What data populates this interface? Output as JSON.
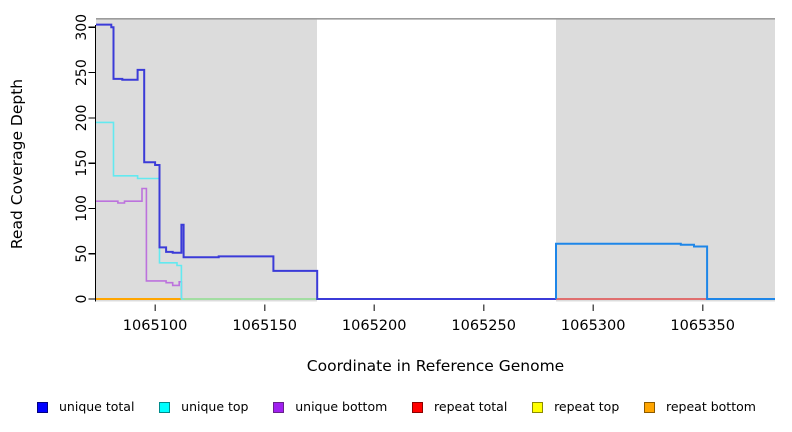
{
  "figure": {
    "x_axis_title": "Coordinate in Reference Genome",
    "y_axis_title": "Read Coverage Depth"
  },
  "legend": {
    "items": [
      {
        "label": "unique total",
        "color": "#0000FF",
        "border": "#000080"
      },
      {
        "label": "unique top",
        "color": "#00FFFF",
        "border": "#008B8B"
      },
      {
        "label": "unique bottom",
        "color": "#A020F0",
        "border": "#68228B"
      },
      {
        "label": "repeat total",
        "color": "#FF0000",
        "border": "#8B0000"
      },
      {
        "label": "repeat top",
        "color": "#FFFF00",
        "border": "#8B8B00"
      },
      {
        "label": "repeat bottom",
        "color": "#FFA500",
        "border": "#8B5A00"
      }
    ]
  },
  "chart_data": {
    "type": "line",
    "title": "",
    "xlabel": "Coordinate in Reference Genome",
    "ylabel": "Read Coverage Depth",
    "xlim": [
      1065073,
      1065383
    ],
    "ylim": [
      0,
      300
    ],
    "x_ticks": [
      1065100,
      1065150,
      1065200,
      1065250,
      1065300,
      1065350
    ],
    "y_ticks": [
      0,
      50,
      100,
      150,
      200,
      250,
      300
    ],
    "grid": false,
    "legend_position": "bottom",
    "plot_bg": "#FFFFFF",
    "band_color": "#DCDCDC",
    "top_border_color": "#9C9C9C",
    "background_bands": [
      {
        "x1": 1065073,
        "x2": 1065174
      },
      {
        "x1": 1065283,
        "x2": 1065383
      }
    ],
    "series": [
      {
        "name": "repeat bottom",
        "color": "#FFA500",
        "width": 2,
        "points": [
          [
            1065073,
            0
          ],
          [
            1065112,
            0
          ]
        ]
      },
      {
        "name": "unique top + repeat top overlap at zero",
        "color": "#8FDD8F",
        "width": 1.6,
        "points": [
          [
            1065112,
            0
          ],
          [
            1065174,
            0
          ]
        ]
      },
      {
        "name": "repeat total",
        "color": "#E24B4B",
        "width": 1.6,
        "points": [
          [
            1065283,
            0
          ],
          [
            1065383,
            0
          ]
        ]
      },
      {
        "name": "unique bottom",
        "color": "#BC72DD",
        "width": 1.6,
        "points": [
          [
            1065073,
            108
          ],
          [
            1065083,
            108
          ],
          [
            1065083,
            106
          ],
          [
            1065086,
            106
          ],
          [
            1065086,
            108
          ],
          [
            1065094,
            108
          ],
          [
            1065094,
            122
          ],
          [
            1065096,
            122
          ],
          [
            1065096,
            20
          ],
          [
            1065105,
            20
          ],
          [
            1065105,
            18
          ],
          [
            1065108,
            18
          ],
          [
            1065108,
            15
          ],
          [
            1065111,
            15
          ],
          [
            1065111,
            19
          ],
          [
            1065112,
            19
          ],
          [
            1065112,
            0
          ]
        ]
      },
      {
        "name": "unique top",
        "color": "#63E9F0",
        "width": 1.6,
        "points": [
          [
            1065073,
            195
          ],
          [
            1065081,
            195
          ],
          [
            1065081,
            136
          ],
          [
            1065092,
            136
          ],
          [
            1065092,
            133
          ],
          [
            1065102,
            133
          ],
          [
            1065102,
            40
          ],
          [
            1065110,
            40
          ],
          [
            1065110,
            37
          ],
          [
            1065112,
            37
          ],
          [
            1065112,
            0
          ],
          [
            1065113,
            0
          ]
        ]
      },
      {
        "name": "unique total",
        "color": "#3B3BD8",
        "width": 2,
        "points": [
          [
            1065073,
            303
          ],
          [
            1065080,
            303
          ],
          [
            1065080,
            300
          ],
          [
            1065081,
            300
          ],
          [
            1065081,
            243
          ],
          [
            1065085,
            243
          ],
          [
            1065085,
            242
          ],
          [
            1065092,
            242
          ],
          [
            1065092,
            253
          ],
          [
            1065095,
            253
          ],
          [
            1065095,
            151
          ],
          [
            1065100,
            151
          ],
          [
            1065100,
            148
          ],
          [
            1065102,
            148
          ],
          [
            1065102,
            57
          ],
          [
            1065105,
            57
          ],
          [
            1065105,
            52
          ],
          [
            1065108,
            52
          ],
          [
            1065108,
            51
          ],
          [
            1065112,
            51
          ],
          [
            1065112,
            82
          ],
          [
            1065113,
            82
          ],
          [
            1065113,
            46
          ],
          [
            1065129,
            46
          ],
          [
            1065129,
            47
          ],
          [
            1065154,
            47
          ],
          [
            1065154,
            31
          ],
          [
            1065174,
            31
          ],
          [
            1065174,
            0
          ],
          [
            1065283,
            0
          ]
        ]
      },
      {
        "name": "unique total (repeat region)",
        "color": "#1E86E8",
        "width": 2,
        "points": [
          [
            1065283,
            0
          ],
          [
            1065283,
            61
          ],
          [
            1065340,
            61
          ],
          [
            1065340,
            60
          ],
          [
            1065346,
            60
          ],
          [
            1065346,
            58
          ],
          [
            1065352,
            58
          ],
          [
            1065352,
            0
          ],
          [
            1065383,
            0
          ]
        ]
      }
    ]
  }
}
